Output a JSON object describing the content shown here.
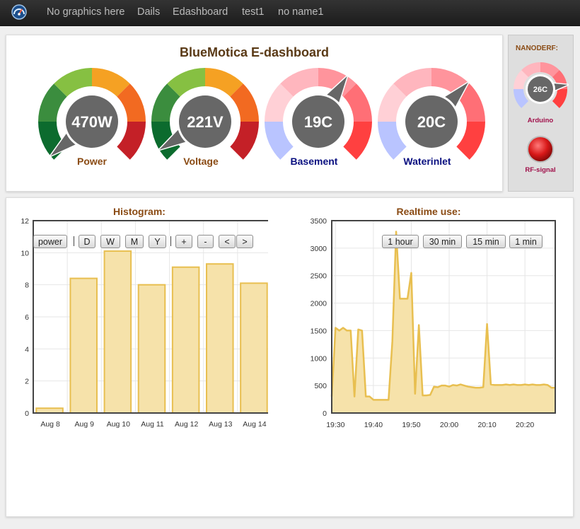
{
  "nav": {
    "logo_icon": "dashboard-gauge-icon",
    "items": [
      "No graphics here",
      "Dails",
      "Edashboard",
      "test1",
      "no name1"
    ]
  },
  "dashboard": {
    "title": "BlueMotica E-dashboard",
    "gauges": [
      {
        "label": "Power",
        "value": "470W",
        "fraction": 0.02,
        "label_color": "#8a4b14",
        "scheme": "warm"
      },
      {
        "label": "Voltage",
        "value": "221V",
        "fraction": 0.05,
        "label_color": "#8a4b14",
        "scheme": "warm"
      },
      {
        "label": "Basement",
        "value": "19C",
        "fraction": 0.62,
        "label_color": "#0a1080",
        "scheme": "temp"
      },
      {
        "label": "Waterinlet",
        "value": "20C",
        "fraction": 0.66,
        "label_color": "#0a1080",
        "scheme": "temp"
      }
    ]
  },
  "side": {
    "title": "NANODERF:",
    "gauge": {
      "value": "26C",
      "fraction": 0.8
    },
    "gauge_label": "Arduino",
    "led_label": "RF-signal",
    "led_color": "#d81818"
  },
  "histogram": {
    "title": "Histogram:",
    "buttons": [
      "power",
      "D",
      "W",
      "M",
      "Y",
      "+",
      "-",
      "<",
      ">"
    ]
  },
  "realtime": {
    "title": "Realtime use:",
    "buttons": [
      "1 hour",
      "30 min",
      "15 min",
      "1 min"
    ]
  },
  "chart_data": [
    {
      "type": "bar",
      "title": "Histogram:",
      "categories": [
        "Aug 8",
        "Aug 9",
        "Aug 10",
        "Aug 11",
        "Aug 12",
        "Aug 13",
        "Aug 14"
      ],
      "values": [
        0.3,
        8.4,
        10.1,
        8.0,
        9.1,
        9.3,
        8.1
      ],
      "yticks": [
        0,
        2,
        4,
        6,
        8,
        10,
        12
      ],
      "ylim": [
        0,
        12
      ],
      "grid": true,
      "color": "#e8bf50",
      "fill": "#f6e2aa"
    },
    {
      "type": "area",
      "title": "Realtime use:",
      "xticks": [
        "19:30",
        "19:40",
        "19:50",
        "20:00",
        "20:10",
        "20:20"
      ],
      "xlim": [
        "19:29",
        "20:28"
      ],
      "yticks": [
        0,
        500,
        1000,
        1500,
        2000,
        2500,
        3000,
        3500
      ],
      "ylim": [
        0,
        3500
      ],
      "grid": true,
      "color": "#e8bf50",
      "fill": "#f6e2aa",
      "x": [
        "19:29",
        "19:30",
        "19:31",
        "19:32",
        "19:33",
        "19:34",
        "19:35",
        "19:36",
        "19:37",
        "19:38",
        "19:39",
        "19:40",
        "19:41",
        "19:42",
        "19:43",
        "19:44",
        "19:45",
        "19:46",
        "19:47",
        "19:48",
        "19:49",
        "19:50",
        "19:51",
        "19:52",
        "19:53",
        "19:54",
        "19:55",
        "19:56",
        "19:57",
        "19:58",
        "19:59",
        "20:00",
        "20:01",
        "20:02",
        "20:03",
        "20:04",
        "20:05",
        "20:06",
        "20:07",
        "20:08",
        "20:09",
        "20:10",
        "20:11",
        "20:12",
        "20:13",
        "20:14",
        "20:15",
        "20:16",
        "20:17",
        "20:18",
        "20:19",
        "20:20",
        "20:21",
        "20:22",
        "20:23",
        "20:24",
        "20:25",
        "20:26",
        "20:27",
        "20:28"
      ],
      "values": [
        300,
        1550,
        1500,
        1550,
        1500,
        1500,
        300,
        1520,
        1500,
        300,
        300,
        240,
        240,
        240,
        240,
        240,
        1300,
        3300,
        2080,
        2080,
        2080,
        2550,
        350,
        1600,
        320,
        320,
        330,
        480,
        470,
        500,
        500,
        480,
        510,
        500,
        520,
        500,
        480,
        470,
        460,
        460,
        470,
        1620,
        520,
        510,
        510,
        510,
        520,
        510,
        520,
        510,
        510,
        520,
        510,
        520,
        510,
        510,
        520,
        510,
        460,
        460
      ]
    }
  ]
}
